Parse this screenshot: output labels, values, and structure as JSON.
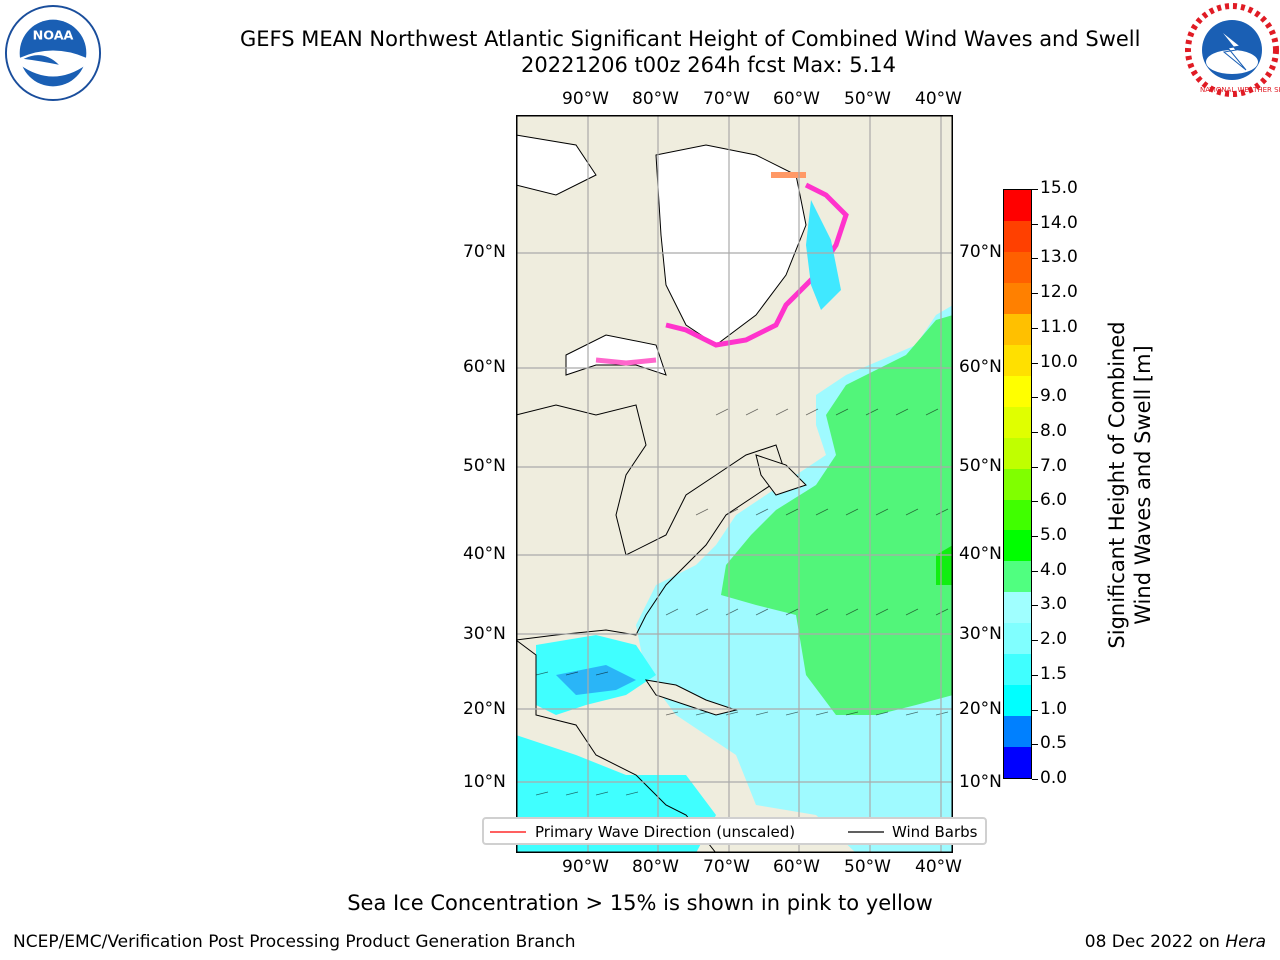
{
  "header": {
    "title_line1": "GEFS MEAN Northwest Atlantic Significant Height of Combined Wind Waves and Swell",
    "title_line2": "20221206 t00z 264h fcst   Max: 5.14"
  },
  "logos": {
    "left": {
      "name": "noaa-logo",
      "text": "NOAA"
    },
    "right": {
      "name": "nws-logo",
      "text": "NATIONAL WEATHER SERVICE"
    }
  },
  "map": {
    "top_lon_labels": [
      "90°W",
      "80°W",
      "70°W",
      "60°W",
      "50°W",
      "40°W"
    ],
    "bottom_lon_labels": [
      "90°W",
      "80°W",
      "70°W",
      "60°W",
      "50°W",
      "40°W"
    ],
    "left_lat_labels": [
      "70°N",
      "60°N",
      "50°N",
      "40°N",
      "30°N",
      "20°N",
      "10°N"
    ],
    "right_lat_labels": [
      "70°N",
      "60°N",
      "50°N",
      "40°N",
      "30°N",
      "20°N",
      "10°N"
    ]
  },
  "colorbar": {
    "label_line1": "Significant Height of Combined",
    "label_line2": "Wind Waves and Swell [m]",
    "ticks": [
      "15.0",
      "14.0",
      "13.0",
      "12.0",
      "11.0",
      "10.0",
      "9.0",
      "8.0",
      "7.0",
      "6.0",
      "5.0",
      "4.0",
      "3.0",
      "2.0",
      "1.5",
      "1.0",
      "0.5",
      "0.0"
    ],
    "colors": [
      "#0000ff",
      "#0080ff",
      "#00ffff",
      "#40ffff",
      "#80ffff",
      "#a0ffff",
      "#50ff80",
      "#00ff00",
      "#40ff00",
      "#80ff00",
      "#c0ff00",
      "#e0ff00",
      "#ffff00",
      "#ffe000",
      "#ffc000",
      "#ff8000",
      "#ff6000",
      "#ff4000",
      "#ff0000"
    ]
  },
  "legend": {
    "wave_direction": "Primary Wave Direction (unscaled)",
    "wind_barbs": "Wind Barbs",
    "wave_color": "#ff0000",
    "barb_color": "#000000"
  },
  "footer": {
    "note": "Sea Ice Concentration > 15% is shown in pink to yellow",
    "left": "NCEP/EMC/Verification Post Processing Product Generation Branch",
    "date": "08 Dec 2022 on ",
    "machine": "Hera"
  }
}
